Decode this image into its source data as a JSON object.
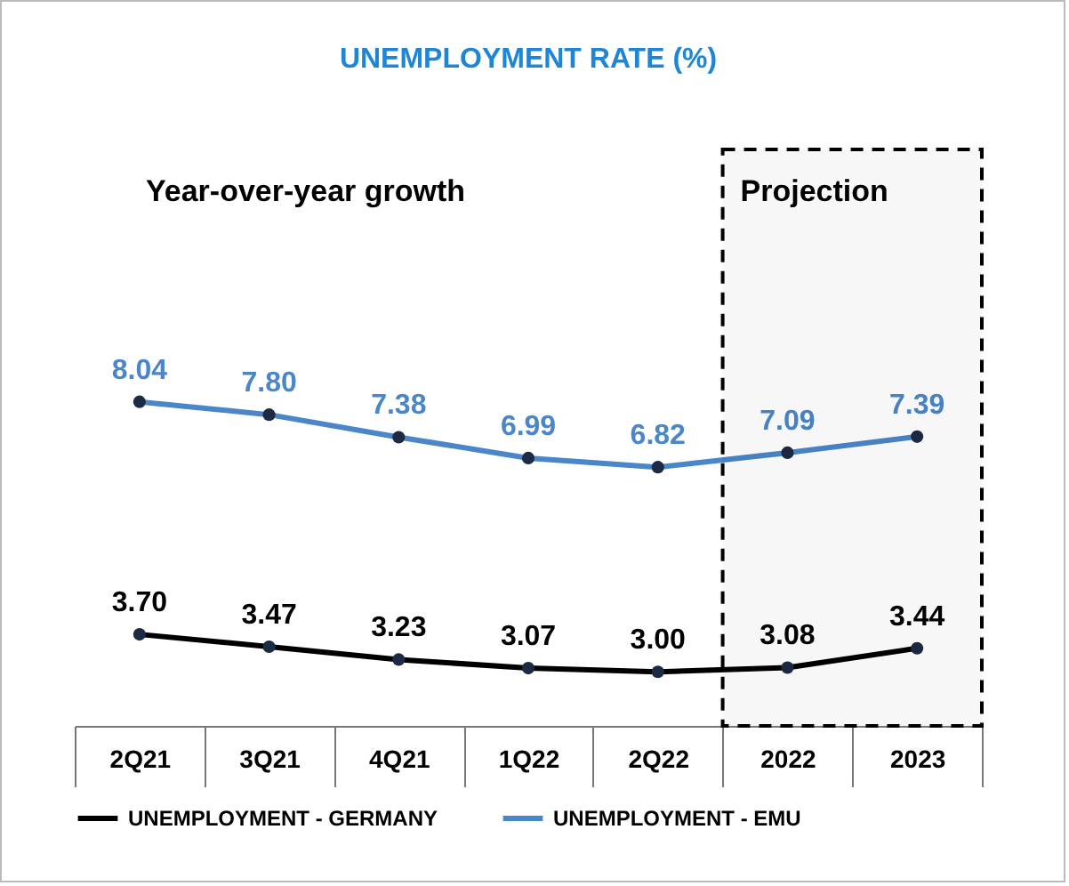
{
  "chart_data": {
    "type": "line",
    "title": "UNEMPLOYMENT RATE (%)",
    "categories": [
      "2Q21",
      "3Q21",
      "4Q21",
      "1Q22",
      "2Q22",
      "2022",
      "2023"
    ],
    "series": [
      {
        "name": "UNEMPLOYMENT - GERMANY",
        "color": "#000000",
        "values": [
          3.7,
          3.47,
          3.23,
          3.07,
          3.0,
          3.08,
          3.44
        ],
        "value_labels": [
          "3.70",
          "3.47",
          "3.23",
          "3.07",
          "3.00",
          "3.08",
          "3.44"
        ]
      },
      {
        "name": "UNEMPLOYMENT - EMU",
        "color": "#4a86c8",
        "values": [
          8.04,
          7.8,
          7.38,
          6.99,
          6.82,
          7.09,
          7.39
        ],
        "value_labels": [
          "8.04",
          "7.80",
          "7.38",
          "6.99",
          "6.82",
          "7.09",
          "7.39"
        ]
      }
    ],
    "bands": [
      {
        "axis": "x",
        "from": "2022",
        "to": "2023",
        "label": "Projection"
      }
    ],
    "annotations": [
      "Year-over-year growth"
    ],
    "tick_labels": "x",
    "grid": false,
    "legend": "bottom",
    "marker": "circle",
    "line_style": "solid"
  }
}
